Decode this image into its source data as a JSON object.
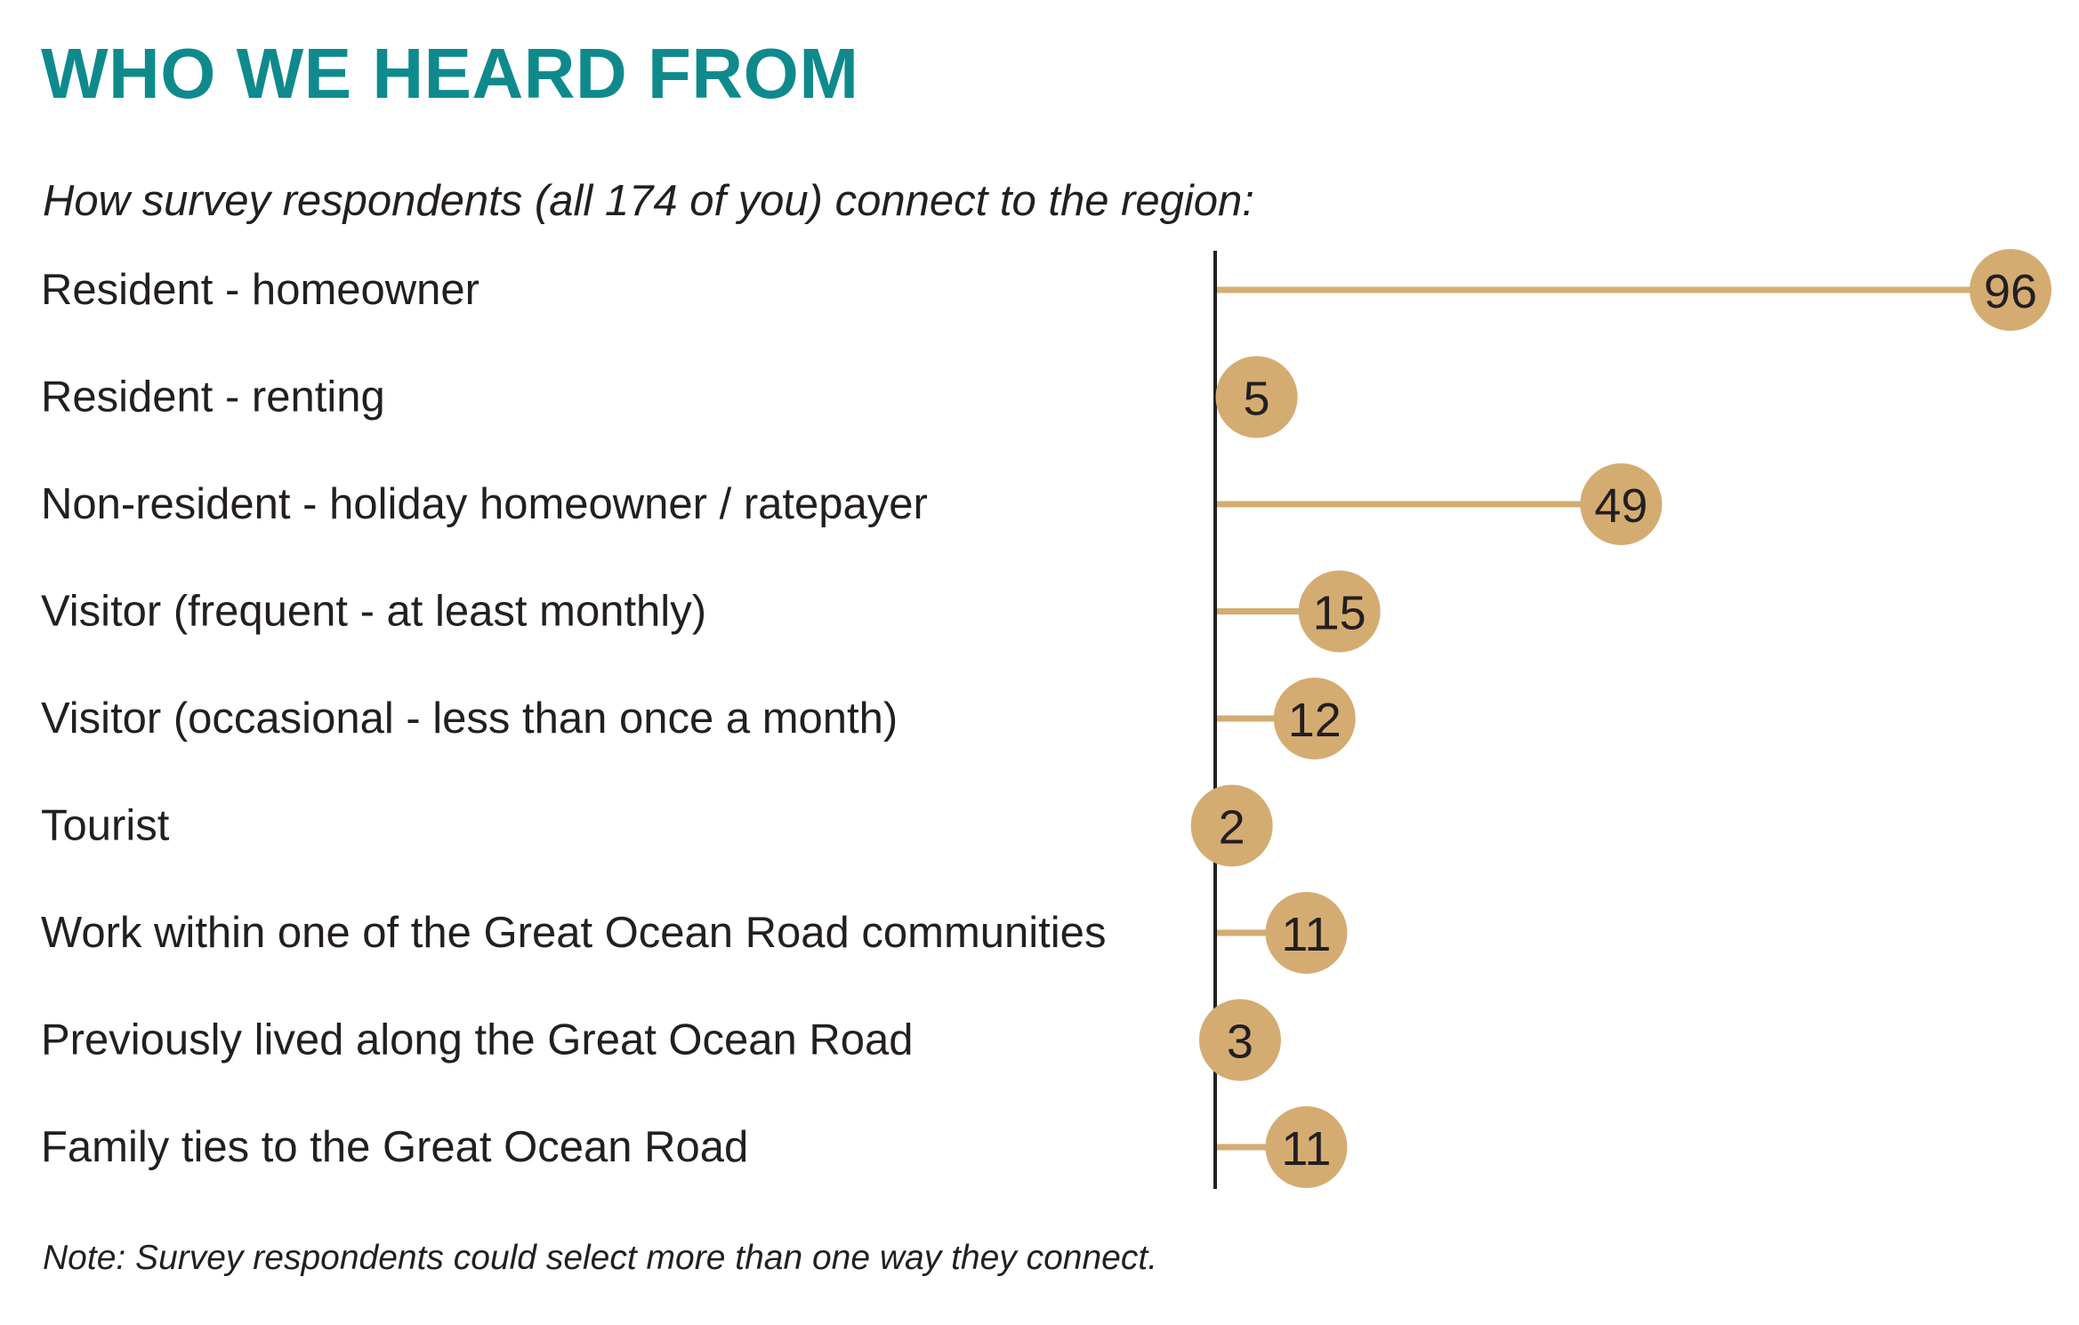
{
  "title": "WHO WE HEARD FROM",
  "subtitle": "How survey respondents (all 174 of you) connect to the region:",
  "note": "Note: Survey respondents could select more than one way they connect.",
  "colors": {
    "title": "#0f8a8c",
    "marker": "#d4ac72",
    "axis": "#231f20",
    "text": "#231f20"
  },
  "chart_data": {
    "type": "bar",
    "style": "lollipop",
    "orientation": "horizontal",
    "categories": [
      "Resident - homeowner",
      "Resident - renting",
      "Non-resident - holiday homeowner / ratepayer",
      "Visitor (frequent - at least monthly)",
      "Visitor (occasional - less than once a month)",
      "Tourist",
      "Work within one of the Great Ocean Road communities",
      "Previously lived along the Great Ocean Road",
      "Family ties to the Great Ocean Road"
    ],
    "values": [
      96,
      5,
      49,
      15,
      12,
      2,
      11,
      3,
      11
    ],
    "data_labels": [
      "96",
      "5",
      "49",
      "15",
      "12",
      "2",
      "11",
      "3",
      "11"
    ],
    "xlim": [
      0,
      96
    ],
    "grid": false,
    "legend": "none"
  }
}
